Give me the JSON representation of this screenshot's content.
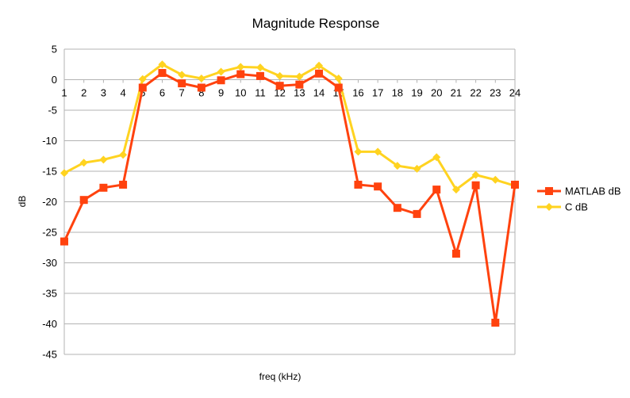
{
  "chart_data": {
    "type": "line",
    "title": "Magnitude Response",
    "xlabel": "freq (kHz)",
    "ylabel": "dB",
    "categories": [
      "1",
      "2",
      "3",
      "4",
      "5",
      "6",
      "7",
      "8",
      "9",
      "10",
      "11",
      "12",
      "13",
      "14",
      "15",
      "16",
      "17",
      "18",
      "19",
      "20",
      "21",
      "22",
      "23",
      "24"
    ],
    "ylim": [
      -45,
      5
    ],
    "yticks": [
      5,
      0,
      -5,
      -10,
      -15,
      -20,
      -25,
      -30,
      -35,
      -40,
      -45
    ],
    "grid": true,
    "legend_position": "right",
    "series": [
      {
        "name": "MATLAB dB",
        "color": "#ff420e",
        "marker": "square",
        "values": [
          -26.5,
          -19.7,
          -17.7,
          -17.2,
          -1.3,
          1.1,
          -0.6,
          -1.3,
          -0.1,
          0.9,
          0.6,
          -1.0,
          -0.8,
          1.0,
          -1.3,
          -17.2,
          -17.5,
          -21.0,
          -22.0,
          -18.0,
          -28.5,
          -17.3,
          -39.8,
          -17.2
        ]
      },
      {
        "name": "C dB",
        "color": "#ffd320",
        "marker": "diamond",
        "values": [
          -15.3,
          -13.6,
          -13.1,
          -12.3,
          0.1,
          2.5,
          0.8,
          0.2,
          1.3,
          2.1,
          2.0,
          0.6,
          0.5,
          2.3,
          0.2,
          -11.8,
          -11.8,
          -14.1,
          -14.6,
          -12.7,
          -18.0,
          -15.6,
          -16.4,
          -17.4
        ]
      }
    ]
  }
}
